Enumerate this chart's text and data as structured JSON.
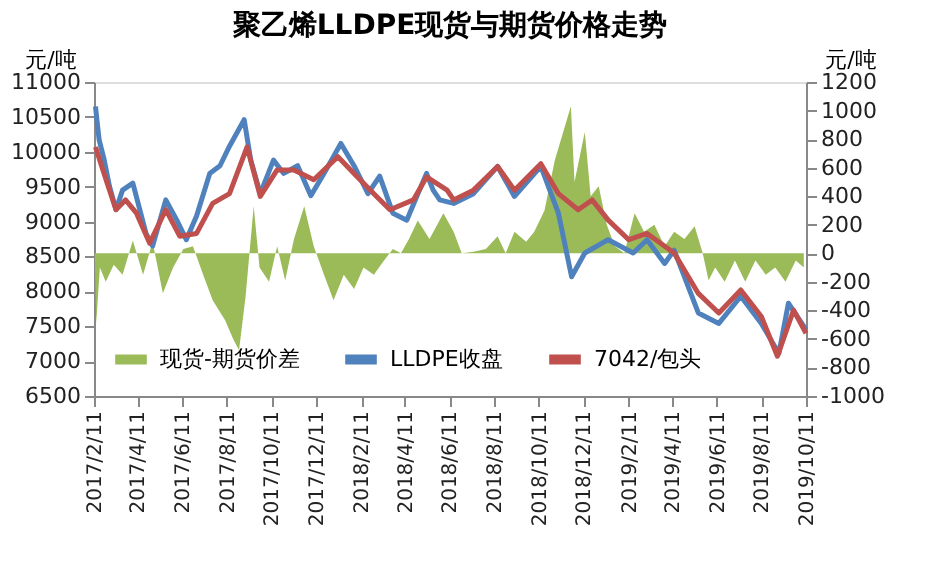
{
  "chart_data": {
    "type": "line",
    "title": "聚乙烯LLDPE现货与期货价格走势",
    "ylabel": "元/吨",
    "y2label": "元/吨",
    "ylim": [
      6500,
      11000
    ],
    "yticks": [
      6500,
      7000,
      7500,
      8000,
      8500,
      9000,
      9500,
      10000,
      10500,
      11000
    ],
    "y2lim": [
      -1000,
      1200
    ],
    "y2ticks": [
      -1000,
      -800,
      -600,
      -400,
      -200,
      0,
      200,
      400,
      600,
      800,
      1000,
      1200
    ],
    "xlim": [
      "2017-02-11",
      "2019-10-11"
    ],
    "xticks": [
      {
        "value": "2017-02-11",
        "label": "2017/2/11"
      },
      {
        "value": "2017-04-11",
        "label": "2017/4/11"
      },
      {
        "value": "2017-06-11",
        "label": "2017/6/11"
      },
      {
        "value": "2017-08-11",
        "label": "2017/8/11"
      },
      {
        "value": "2017-10-11",
        "label": "2017/10/11"
      },
      {
        "value": "2017-12-11",
        "label": "2017/12/11"
      },
      {
        "value": "2018-02-11",
        "label": "2018/2/11"
      },
      {
        "value": "2018-04-11",
        "label": "2018/4/11"
      },
      {
        "value": "2018-06-11",
        "label": "2018/6/11"
      },
      {
        "value": "2018-08-11",
        "label": "2018/8/11"
      },
      {
        "value": "2018-10-11",
        "label": "2018/10/11"
      },
      {
        "value": "2018-12-11",
        "label": "2018/12/11"
      },
      {
        "value": "2019-02-11",
        "label": "2019/2/11"
      },
      {
        "value": "2019-04-11",
        "label": "2019/4/11"
      },
      {
        "value": "2019-06-11",
        "label": "2019/6/11"
      },
      {
        "value": "2019-08-11",
        "label": "2019/8/11"
      },
      {
        "value": "2019-10-11",
        "label": "2019/10/11"
      }
    ],
    "legend": "bottom",
    "grid": false,
    "series": [
      {
        "name": "现货-期货价差",
        "type": "area",
        "axis": "y2",
        "color": "#9bbb59",
        "x": [
          "2017-02-12",
          "2017-02-14",
          "2017-02-19",
          "2017-02-27",
          "2017-03-10",
          "2017-03-22",
          "2017-04-05",
          "2017-04-19",
          "2017-05-02",
          "2017-05-16",
          "2017-05-30",
          "2017-06-13",
          "2017-06-26",
          "2017-07-10",
          "2017-07-23",
          "2017-08-09",
          "2017-08-20",
          "2017-08-28",
          "2017-09-06",
          "2017-09-17",
          "2017-09-25",
          "2017-10-08",
          "2017-10-19",
          "2017-10-30",
          "2017-11-11",
          "2017-11-25",
          "2017-12-08",
          "2017-12-22",
          "2018-01-04",
          "2018-01-18",
          "2018-02-01",
          "2018-02-14",
          "2018-02-28",
          "2018-03-14",
          "2018-03-26",
          "2018-04-06",
          "2018-04-17",
          "2018-04-29",
          "2018-05-15",
          "2018-06-03",
          "2018-06-17",
          "2018-06-28",
          "2018-07-14",
          "2018-07-31",
          "2018-08-16",
          "2018-08-27",
          "2018-09-08",
          "2018-09-24",
          "2018-10-05",
          "2018-10-19",
          "2018-11-02",
          "2018-11-24",
          "2018-11-29",
          "2018-12-13",
          "2018-12-21",
          "2019-01-01",
          "2019-01-12",
          "2019-01-23",
          "2019-02-05",
          "2019-02-19",
          "2019-03-04",
          "2019-03-18",
          "2019-04-01",
          "2019-04-14",
          "2019-04-28",
          "2019-05-12",
          "2019-05-23",
          "2019-05-31",
          "2019-06-09",
          "2019-06-22",
          "2019-07-06",
          "2019-07-20",
          "2019-08-03",
          "2019-08-17",
          "2019-08-30",
          "2019-09-13",
          "2019-09-27",
          "2019-10-08"
        ],
        "values": [
          0,
          -490,
          -100,
          -200,
          -80,
          -150,
          90,
          -150,
          80,
          -280,
          -100,
          30,
          50,
          -150,
          -330,
          -470,
          -600,
          -680,
          -300,
          330,
          -100,
          -200,
          50,
          -190,
          100,
          330,
          50,
          -150,
          -330,
          -150,
          -250,
          -100,
          -150,
          -50,
          30,
          0,
          100,
          230,
          100,
          280,
          150,
          0,
          10,
          30,
          120,
          0,
          150,
          80,
          150,
          300,
          650,
          1030,
          500,
          850,
          400,
          470,
          200,
          50,
          0,
          280,
          150,
          200,
          50,
          150,
          100,
          190,
          0,
          -190,
          -100,
          -200,
          -50,
          -200,
          -50,
          -150,
          -100,
          -200,
          -50,
          -100
        ]
      },
      {
        "name": "LLDPE收盘",
        "color": "#4f81bd",
        "x": [
          "2017-02-13",
          "2017-02-18",
          "2017-02-25",
          "2017-03-04",
          "2017-03-13",
          "2017-03-22",
          "2017-04-05",
          "2017-04-23",
          "2017-05-02",
          "2017-05-20",
          "2017-06-04",
          "2017-06-17",
          "2017-07-01",
          "2017-07-19",
          "2017-08-02",
          "2017-08-15",
          "2017-09-04",
          "2017-09-13",
          "2017-09-26",
          "2017-10-14",
          "2017-10-28",
          "2017-11-16",
          "2017-12-04",
          "2017-12-22",
          "2018-01-14",
          "2018-02-01",
          "2018-02-20",
          "2018-03-08",
          "2018-03-26",
          "2018-04-14",
          "2018-04-28",
          "2018-05-11",
          "2018-05-20",
          "2018-05-29",
          "2018-06-17",
          "2018-07-14",
          "2018-08-16",
          "2018-09-08",
          "2018-10-14",
          "2018-11-07",
          "2018-11-25",
          "2018-12-13",
          "2019-01-14",
          "2019-02-17",
          "2019-03-08",
          "2019-04-01",
          "2019-04-14",
          "2019-05-17",
          "2019-06-14",
          "2019-07-14",
          "2019-08-11",
          "2019-09-04",
          "2019-09-17",
          "2019-10-11"
        ],
        "values": [
          10650,
          10170,
          9880,
          9510,
          9170,
          9450,
          9550,
          8830,
          8650,
          9310,
          9020,
          8740,
          9080,
          9690,
          9800,
          10080,
          10460,
          9880,
          9400,
          9880,
          9690,
          9800,
          9370,
          9690,
          10120,
          9800,
          9400,
          9650,
          9120,
          9020,
          9370,
          9690,
          9450,
          9310,
          9260,
          9400,
          9790,
          9360,
          9790,
          9120,
          8210,
          8550,
          8740,
          8550,
          8740,
          8400,
          8590,
          7690,
          7540,
          7930,
          7540,
          7110,
          7830,
          7450
        ]
      },
      {
        "name": "7042/包头",
        "color": "#c0504d",
        "x": [
          "2017-02-13",
          "2017-03-01",
          "2017-03-13",
          "2017-03-26",
          "2017-04-10",
          "2017-04-28",
          "2017-05-20",
          "2017-06-08",
          "2017-07-01",
          "2017-07-23",
          "2017-08-15",
          "2017-09-08",
          "2017-09-26",
          "2017-10-19",
          "2017-11-11",
          "2017-12-08",
          "2018-01-10",
          "2018-02-01",
          "2018-02-28",
          "2018-03-22",
          "2018-04-23",
          "2018-05-11",
          "2018-06-08",
          "2018-06-17",
          "2018-07-14",
          "2018-08-16",
          "2018-09-08",
          "2018-10-14",
          "2018-11-07",
          "2018-12-04",
          "2018-12-23",
          "2019-01-14",
          "2019-02-11",
          "2019-03-08",
          "2019-04-14",
          "2019-05-17",
          "2019-06-14",
          "2019-07-14",
          "2019-08-11",
          "2019-09-02",
          "2019-09-24",
          "2019-10-11"
        ],
        "values": [
          10070,
          9550,
          9170,
          9310,
          9120,
          8690,
          9170,
          8790,
          8830,
          9260,
          9400,
          10070,
          9360,
          9740,
          9740,
          9600,
          9930,
          9690,
          9400,
          9170,
          9310,
          9640,
          9450,
          9310,
          9450,
          9790,
          9450,
          9830,
          9400,
          9170,
          9310,
          9020,
          8740,
          8830,
          8550,
          7970,
          7690,
          8020,
          7640,
          7070,
          7730,
          7400
        ]
      }
    ]
  }
}
